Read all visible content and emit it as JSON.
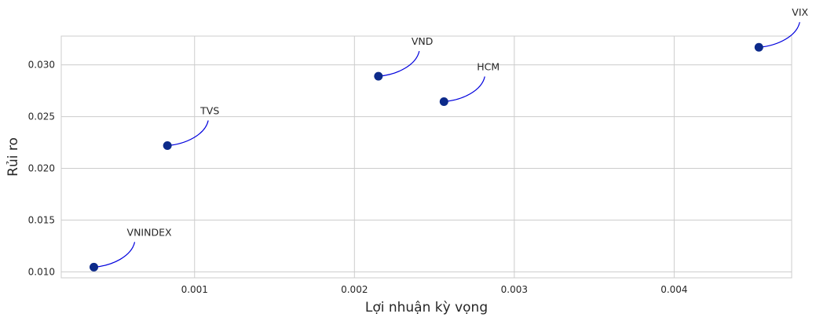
{
  "chart_data": {
    "type": "scatter",
    "xlabel": "Lợi nhuận kỳ vọng",
    "ylabel": "Rủi ro",
    "xlim": [
      0.000166,
      0.004735
    ],
    "ylim": [
      0.00942,
      0.03278
    ],
    "x_ticks": [
      0.001,
      0.002,
      0.003,
      0.004
    ],
    "x_tick_labels": [
      "0.001",
      "0.002",
      "0.003",
      "0.004"
    ],
    "y_ticks": [
      0.01,
      0.015,
      0.02,
      0.025,
      0.03
    ],
    "y_tick_labels": [
      "0.010",
      "0.015",
      "0.020",
      "0.025",
      "0.030"
    ],
    "grid": true,
    "marker_color": "#0c2a8a",
    "connector_color": "#0000dd",
    "points": [
      {
        "label": "VNINDEX",
        "x": 0.00037,
        "y": 0.01045
      },
      {
        "label": "TVS",
        "x": 0.00083,
        "y": 0.0222
      },
      {
        "label": "VND",
        "x": 0.00215,
        "y": 0.0289
      },
      {
        "label": "HCM",
        "x": 0.00256,
        "y": 0.02645
      },
      {
        "label": "VIX",
        "x": 0.00453,
        "y": 0.0317
      }
    ]
  }
}
